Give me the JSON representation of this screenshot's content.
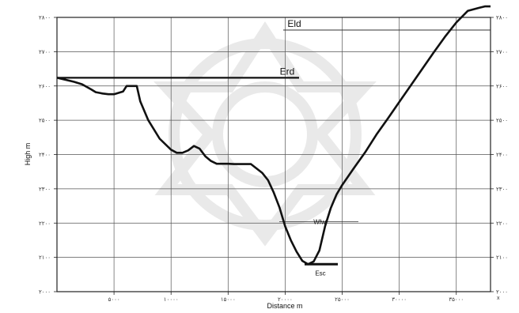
{
  "chart_data": {
    "type": "line",
    "xlabel": "Distance  m",
    "ylabel": "High m",
    "xlim": [
      0,
      38000
    ],
    "ylim": [
      2000,
      2800
    ],
    "grid": true,
    "x_ticks": [
      {
        "value": 5000,
        "label": "۵۰۰۰"
      },
      {
        "value": 10000,
        "label": "۱۰۰۰۰"
      },
      {
        "value": 15000,
        "label": "۱۵۰۰۰"
      },
      {
        "value": 20000,
        "label": "۲۰۰۰۰"
      },
      {
        "value": 25000,
        "label": "۲۵۰۰۰"
      },
      {
        "value": 30000,
        "label": "۳۰۰۰۰"
      },
      {
        "value": 35000,
        "label": "۳۵۰۰۰"
      }
    ],
    "y_ticks_left": [
      {
        "value": 2000,
        "label": "۲۰۰۰"
      },
      {
        "value": 2100,
        "label": "۲۱۰۰"
      },
      {
        "value": 2200,
        "label": "۲۲۰۰"
      },
      {
        "value": 2300,
        "label": "۲۳۰۰"
      },
      {
        "value": 2400,
        "label": "۲۴۰۰"
      },
      {
        "value": 2500,
        "label": "۲۵۰۰"
      },
      {
        "value": 2600,
        "label": "۲۶۰۰"
      },
      {
        "value": 2700,
        "label": "۲۷۰۰"
      },
      {
        "value": 2800,
        "label": "۲۸۰۰"
      }
    ],
    "y_ticks_right": [
      {
        "value": 2000,
        "label": "۲۰۰۰"
      },
      {
        "value": 2100,
        "label": "۲۱۰۰"
      },
      {
        "value": 2200,
        "label": "۲۲۰۰"
      },
      {
        "value": 2300,
        "label": "۲۳۰۰"
      },
      {
        "value": 2400,
        "label": "۲۴۰۰"
      },
      {
        "value": 2500,
        "label": "۲۵۰۰"
      },
      {
        "value": 2600,
        "label": "۲۶۰۰"
      },
      {
        "value": 2700,
        "label": "۲۷۰۰"
      },
      {
        "value": 2800,
        "label": "۲۸۰۰"
      }
    ],
    "corner_label": "x",
    "series": [
      {
        "x": [
          0,
          1500,
          2200,
          3000,
          3400,
          4000,
          4500,
          5000,
          5800,
          6100,
          6500,
          7000,
          7300,
          8000,
          9000,
          10000,
          10500,
          11000,
          11500,
          12000,
          12500,
          13000,
          13500,
          14000,
          15000,
          15500,
          16000,
          17000,
          18000,
          18500,
          19000,
          19500,
          20000,
          20500,
          21000,
          21500,
          22000,
          22500,
          23000,
          23500,
          24000,
          24500,
          25000,
          26000,
          27000,
          28000,
          29000,
          30000,
          31000,
          32000,
          33000,
          34000,
          35000,
          36000,
          37000,
          37500,
          38000
        ],
        "y": [
          2624,
          2612,
          2605,
          2590,
          2582,
          2578,
          2576,
          2576,
          2584,
          2600,
          2600,
          2600,
          2555,
          2500,
          2446,
          2414,
          2405,
          2405,
          2412,
          2425,
          2417,
          2395,
          2381,
          2373,
          2373,
          2372,
          2372,
          2372,
          2346,
          2325,
          2289,
          2246,
          2191,
          2150,
          2117,
          2090,
          2080,
          2088,
          2120,
          2191,
          2244,
          2283,
          2311,
          2359,
          2406,
          2458,
          2505,
          2553,
          2601,
          2649,
          2697,
          2743,
          2785,
          2819,
          2828,
          2832,
          2832
        ]
      }
    ],
    "annotations": [
      {
        "label": "Eld",
        "value": 2763
      },
      {
        "label": "Erd",
        "value": 2624
      },
      {
        "label": "Wfw",
        "value": 2204
      },
      {
        "label": "Esc",
        "value": 2080
      }
    ]
  }
}
